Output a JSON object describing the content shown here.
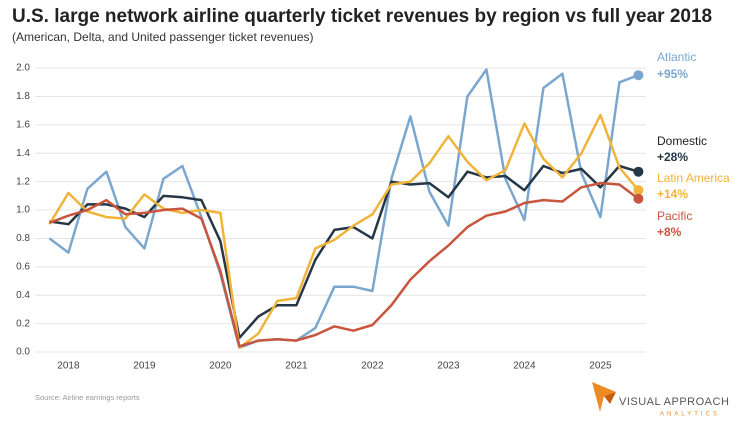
{
  "chart_data": {
    "type": "line",
    "title": "U.S. large network airline quarterly ticket revenues by region vs full year 2018",
    "subtitle": "(American, Delta, and United passenger ticket revenues)",
    "source": "Source:  Airline earnings reports",
    "logo": {
      "line1": "VISUAL APPROACH",
      "line2": "ANALYTICS"
    },
    "x": [
      2017.75,
      2018.0,
      2018.25,
      2018.5,
      2018.75,
      2019.0,
      2019.25,
      2019.5,
      2019.75,
      2020.0,
      2020.25,
      2020.5,
      2020.75,
      2021.0,
      2021.25,
      2021.5,
      2021.75,
      2022.0,
      2022.25,
      2022.5,
      2022.75,
      2023.0,
      2023.25,
      2023.5,
      2023.75,
      2024.0,
      2024.25,
      2024.5,
      2024.75,
      2025.0,
      2025.25,
      2025.5
    ],
    "xlim": [
      2017.6,
      2025.6
    ],
    "xticks": [
      2018,
      2019,
      2020,
      2021,
      2022,
      2023,
      2024,
      2025
    ],
    "ylim": [
      0,
      2.05
    ],
    "yticks": [
      {
        "value": 0,
        "label": "0.0"
      },
      0.2,
      0.4,
      0.6,
      0.8,
      {
        "value": 1,
        "label": "1.0"
      },
      1.2,
      1.4,
      1.6,
      1.8,
      {
        "value": 2,
        "label": "2.0"
      }
    ],
    "grid": true,
    "series": [
      {
        "name": "Atlantic",
        "end_label": "+95%",
        "color": "#7ba7cf",
        "values": [
          0.8,
          0.7,
          1.15,
          1.27,
          0.88,
          0.73,
          1.22,
          1.31,
          0.95,
          0.55,
          0.03,
          0.08,
          0.09,
          0.08,
          0.17,
          0.46,
          0.46,
          0.43,
          1.22,
          1.66,
          1.13,
          0.89,
          1.8,
          1.99,
          1.22,
          0.93,
          1.86,
          1.96,
          1.26,
          0.95,
          1.9,
          1.95
        ]
      },
      {
        "name": "Domestic",
        "end_label": "+28%",
        "color": "#253746",
        "values": [
          0.92,
          0.9,
          1.04,
          1.04,
          1.01,
          0.95,
          1.1,
          1.09,
          1.07,
          0.78,
          0.1,
          0.25,
          0.33,
          0.33,
          0.65,
          0.86,
          0.88,
          0.8,
          1.2,
          1.18,
          1.19,
          1.09,
          1.27,
          1.23,
          1.24,
          1.14,
          1.31,
          1.26,
          1.29,
          1.16,
          1.31,
          1.27
        ]
      },
      {
        "name": "Latin America",
        "end_label": "+14%",
        "color": "#f0b43a",
        "values": [
          0.9,
          1.12,
          0.99,
          0.95,
          0.94,
          1.11,
          1.01,
          0.98,
          1.0,
          0.98,
          0.03,
          0.13,
          0.36,
          0.38,
          0.73,
          0.79,
          0.89,
          0.97,
          1.18,
          1.2,
          1.33,
          1.52,
          1.34,
          1.21,
          1.28,
          1.61,
          1.36,
          1.23,
          1.4,
          1.67,
          1.3,
          1.14
        ]
      },
      {
        "name": "Pacific",
        "end_label": "+8%",
        "color": "#c8553d",
        "values": [
          0.91,
          0.96,
          1.0,
          1.07,
          0.97,
          0.98,
          1.0,
          1.01,
          0.94,
          0.57,
          0.04,
          0.08,
          0.09,
          0.08,
          0.12,
          0.18,
          0.15,
          0.19,
          0.33,
          0.51,
          0.64,
          0.75,
          0.88,
          0.96,
          0.99,
          1.05,
          1.07,
          1.06,
          1.16,
          1.19,
          1.18,
          1.08
        ]
      }
    ]
  }
}
